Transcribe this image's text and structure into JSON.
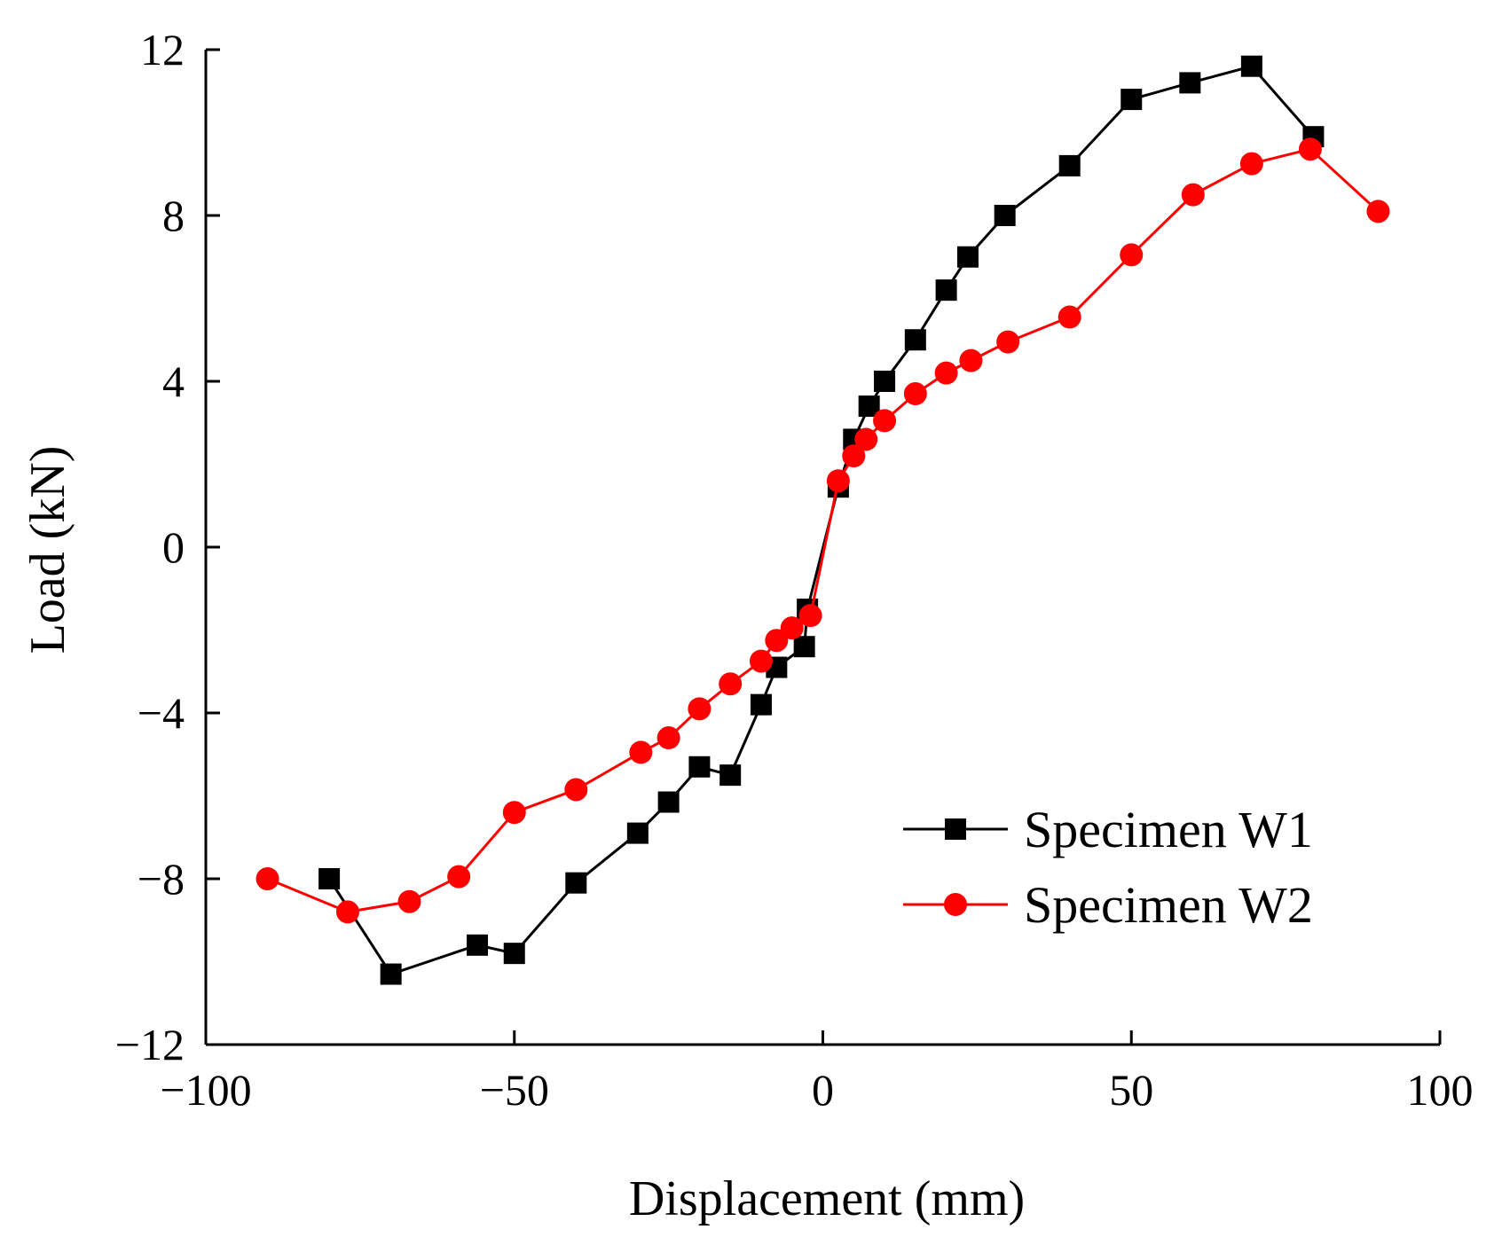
{
  "chart_data": {
    "type": "line",
    "title": "",
    "xlabel": "Displacement (mm)",
    "ylabel": "Load (kN)",
    "xlim": [
      -100,
      100
    ],
    "ylim": [
      -12,
      12
    ],
    "xticks": [
      -100,
      -50,
      0,
      50,
      100
    ],
    "xtick_labels": [
      "−100",
      "−50",
      "0",
      "50",
      "100"
    ],
    "yticks": [
      -12,
      -8,
      -4,
      0,
      4,
      8,
      12
    ],
    "ytick_labels": [
      "−12",
      "−8",
      "−4",
      "0",
      "4",
      "8",
      "12"
    ],
    "grid": false,
    "legend_position": "bottom-right",
    "series": [
      {
        "name": "Specimen W1",
        "color": "#000000",
        "marker": "square",
        "x": [
          -80,
          -70,
          -56,
          -50,
          -40,
          -30,
          -25,
          -20,
          -15,
          -10,
          -7.5,
          -3,
          -2.5,
          2.5,
          5,
          7.5,
          10,
          15,
          20,
          23.5,
          29.5,
          40,
          50,
          59.5,
          69.5,
          79.5
        ],
        "y": [
          -8.0,
          -10.3,
          -9.6,
          -9.8,
          -8.1,
          -6.9,
          -6.15,
          -5.3,
          -5.5,
          -3.8,
          -2.9,
          -2.4,
          -1.5,
          1.45,
          2.6,
          3.4,
          4.0,
          5.0,
          6.2,
          7.0,
          8.0,
          9.2,
          10.8,
          11.2,
          11.6,
          9.9
        ]
      },
      {
        "name": "Specimen W2",
        "color": "#ff0000",
        "marker": "circle",
        "x": [
          -90,
          -77,
          -67,
          -59,
          -50,
          -40,
          -29.5,
          -25,
          -20,
          -15,
          -10,
          -7.5,
          -5,
          -2,
          2.5,
          5,
          7,
          10,
          15,
          20,
          24,
          30,
          40,
          50,
          60,
          69.5,
          79,
          90
        ],
        "y": [
          -8.0,
          -8.8,
          -8.55,
          -7.95,
          -6.4,
          -5.85,
          -4.95,
          -4.6,
          -3.9,
          -3.3,
          -2.75,
          -2.25,
          -1.95,
          -1.65,
          1.6,
          2.2,
          2.6,
          3.05,
          3.7,
          4.2,
          4.5,
          4.95,
          5.55,
          7.05,
          8.5,
          9.25,
          9.6,
          8.1
        ]
      }
    ]
  }
}
